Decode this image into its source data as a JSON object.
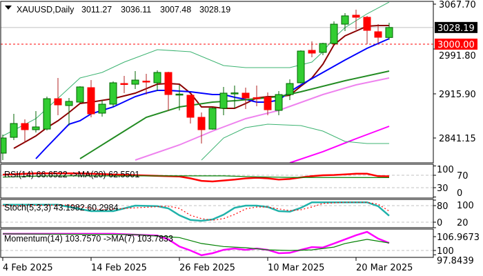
{
  "header": {
    "symbol": "XAUUSD,Daily",
    "open": "3011.27",
    "high": "3036.11",
    "low": "3007.48",
    "close": "3028.19"
  },
  "price_axis": {
    "labels": [
      "3067.70",
      "2991.80",
      "2915.90",
      "2841.15"
    ],
    "label_values": [
      3067.7,
      2991.8,
      2915.9,
      2841.15
    ],
    "current_price_tag": "3028.19",
    "current_price": 3028.19,
    "level_tag": "3000.00",
    "level": 3000.0
  },
  "dates": {
    "labels": [
      "4 Feb 2025",
      "14 Feb 2025",
      "26 Feb 2025",
      "10 Mar 2025",
      "20 Mar 2025"
    ],
    "indices": [
      0,
      8,
      16,
      24,
      32
    ]
  },
  "colors": {
    "up": "#32cd32",
    "down": "#ff0000",
    "ema_fast": "#8b0000",
    "ema_mid": "#0000ff",
    "bb_mid": "#228b22",
    "bb_band": "#3cb371",
    "ma_violet": "#ee82ee",
    "ma_magenta": "#ff00ff",
    "rsi": "#ff0000",
    "rsi_ma": "#008000",
    "stoch_main": "#20b2aa",
    "stoch_signal": "#ff0000",
    "mom": "#ff00ff",
    "mom_ma": "#008000"
  },
  "candles": [
    [
      2815.5,
      2847.0,
      2803.8,
      2841.2
    ],
    [
      2842.3,
      2882.0,
      2837.7,
      2865.7
    ],
    [
      2865.7,
      2872.7,
      2833.0,
      2855.2
    ],
    [
      2855.2,
      2886.7,
      2850.5,
      2859.9
    ],
    [
      2856.3,
      2911.2,
      2854.0,
      2907.7
    ],
    [
      2907.7,
      2942.8,
      2879.7,
      2897.2
    ],
    [
      2896.1,
      2908.9,
      2862.2,
      2903.1
    ],
    [
      2901.9,
      2928.7,
      2900.7,
      2927.6
    ],
    [
      2926.4,
      2939.2,
      2876.2,
      2882.0
    ],
    [
      2883.2,
      2905.4,
      2877.3,
      2898.4
    ],
    [
      2898.4,
      2936.9,
      2893.7,
      2934.6
    ],
    [
      2933.4,
      2946.3,
      2917.1,
      2932.2
    ],
    [
      2932.2,
      2954.4,
      2924.1,
      2939.2
    ],
    [
      2937.5,
      2949.8,
      2914.7,
      2936.9
    ],
    [
      2934.6,
      2955.6,
      2920.6,
      2952.1
    ],
    [
      2952.1,
      2953.3,
      2886.7,
      2914.7
    ],
    [
      2914.7,
      2931.1,
      2887.9,
      2915.5
    ],
    [
      2913.6,
      2914.0,
      2865.7,
      2876.2
    ],
    [
      2876.2,
      2884.4,
      2831.8,
      2855.2
    ],
    [
      2856.3,
      2892.5,
      2855.2,
      2891.4
    ],
    [
      2891.4,
      2927.6,
      2879.7,
      2917.1
    ],
    [
      2916.5,
      2929.9,
      2891.4,
      2917.5
    ],
    [
      2917.1,
      2926.4,
      2890.2,
      2908.9
    ],
    [
      2909.4,
      2929.9,
      2894.9,
      2908.9
    ],
    [
      2910.1,
      2918.2,
      2879.7,
      2889.0
    ],
    [
      2887.9,
      2920.6,
      2879.7,
      2914.7
    ],
    [
      2914.7,
      2940.4,
      2905.4,
      2933.4
    ],
    [
      2934.6,
      2989.5,
      2933.4,
      2988.3
    ],
    [
      2989.5,
      3004.6,
      2977.8,
      2984.8
    ],
    [
      2986.0,
      3002.3,
      2981.3,
      3001.1
    ],
    [
      3001.1,
      3038.5,
      3000.0,
      3033.8
    ],
    [
      3033.8,
      3052.5,
      3022.2,
      3047.9
    ],
    [
      3049.0,
      3058.4,
      3024.5,
      3045.5
    ],
    [
      3045.5,
      3047.9,
      3000.0,
      3023.3
    ],
    [
      3021.0,
      3033.8,
      3001.1,
      3011.6
    ],
    [
      3011.27,
      3036.11,
      3007.48,
      3028.19
    ]
  ],
  "overlays": [
    {
      "name": "ema-fast",
      "color": "ema_fast",
      "width": 2,
      "points": [
        [
          1,
          2823.7
        ],
        [
          3,
          2844.7
        ],
        [
          4,
          2858.7
        ],
        [
          5,
          2870.4
        ],
        [
          6,
          2884.4
        ],
        [
          7,
          2899.6
        ],
        [
          8,
          2901.9
        ],
        [
          10,
          2907.7
        ],
        [
          12,
          2917.1
        ],
        [
          14,
          2932.2
        ],
        [
          15,
          2933.4
        ],
        [
          16,
          2932.2
        ],
        [
          17,
          2917.1
        ],
        [
          18,
          2893.7
        ],
        [
          19,
          2893.7
        ],
        [
          20,
          2891.4
        ],
        [
          21,
          2891.4
        ],
        [
          22,
          2899.6
        ],
        [
          23,
          2908.9
        ],
        [
          24,
          2911.2
        ],
        [
          25,
          2911.2
        ],
        [
          26,
          2913.6
        ],
        [
          27,
          2928.7
        ],
        [
          28,
          2942.8
        ],
        [
          29,
          2966.1
        ],
        [
          30,
          2998.8
        ],
        [
          31,
          3014.0
        ],
        [
          32,
          3022.2
        ],
        [
          33,
          3030.3
        ],
        [
          34,
          3031.5
        ],
        [
          35,
          3031.5
        ]
      ]
    },
    {
      "name": "ema-mid",
      "color": "ema_mid",
      "width": 2,
      "points": [
        [
          3,
          2806.1
        ],
        [
          4,
          2826.0
        ],
        [
          6,
          2864.5
        ],
        [
          7,
          2870.4
        ],
        [
          8,
          2882.0
        ],
        [
          10,
          2893.7
        ],
        [
          12,
          2911.2
        ],
        [
          13,
          2917.1
        ],
        [
          14,
          2921.7
        ],
        [
          15,
          2921.7
        ],
        [
          17,
          2919.4
        ],
        [
          19,
          2914.7
        ],
        [
          20,
          2914.7
        ],
        [
          21,
          2910.1
        ],
        [
          22,
          2906.6
        ],
        [
          23,
          2901.9
        ],
        [
          24,
          2901.9
        ],
        [
          25,
          2905.4
        ],
        [
          26,
          2919.4
        ],
        [
          27,
          2931.1
        ],
        [
          29,
          2952.1
        ],
        [
          31,
          2973.1
        ],
        [
          33,
          2993.0
        ],
        [
          35,
          3009.3
        ]
      ]
    },
    {
      "name": "bb-middle",
      "color": "bb_mid",
      "width": 2,
      "points": [
        [
          7,
          2806.1
        ],
        [
          10,
          2841.2
        ],
        [
          13,
          2876.2
        ],
        [
          16,
          2893.7
        ],
        [
          19,
          2901.9
        ],
        [
          21,
          2904.2
        ],
        [
          25,
          2911.2
        ],
        [
          27,
          2919.4
        ],
        [
          31,
          2938.1
        ],
        [
          35,
          2954.4
        ]
      ]
    },
    {
      "name": "ma-violet",
      "color": "ma_violet",
      "width": 2,
      "points": [
        [
          12,
          2803.8
        ],
        [
          16,
          2829.5
        ],
        [
          19,
          2852.8
        ],
        [
          22,
          2873.9
        ],
        [
          25,
          2887.9
        ],
        [
          29,
          2914.7
        ],
        [
          32,
          2931.1
        ],
        [
          35,
          2942.8
        ]
      ]
    },
    {
      "name": "ma-magenta",
      "color": "ma_magenta",
      "width": 2,
      "points": [
        [
          26,
          2799.1
        ],
        [
          29,
          2818.0
        ],
        [
          32,
          2840.0
        ],
        [
          35,
          2861.0
        ]
      ]
    },
    {
      "name": "bb-upper",
      "color": "bb_band",
      "width": 1,
      "points": [
        [
          0,
          2844.7
        ],
        [
          3,
          2873.9
        ],
        [
          7,
          2942.8
        ],
        [
          9,
          2952.1
        ],
        [
          11,
          2969.6
        ],
        [
          14,
          2990.6
        ],
        [
          17,
          2987.1
        ],
        [
          20,
          2963.8
        ],
        [
          22,
          2960.3
        ],
        [
          26,
          2960.3
        ],
        [
          28,
          2969.6
        ],
        [
          29,
          2987.1
        ],
        [
          30,
          3010.5
        ],
        [
          31,
          3028.0
        ],
        [
          33,
          3051.3
        ],
        [
          35,
          3071.2
        ]
      ]
    },
    {
      "name": "bb-lower",
      "color": "bb_band",
      "width": 1,
      "points": [
        [
          18,
          2803.8
        ],
        [
          20,
          2841.2
        ],
        [
          22,
          2858.7
        ],
        [
          24,
          2864.5
        ],
        [
          27,
          2862.2
        ],
        [
          29,
          2852.8
        ],
        [
          31,
          2835.3
        ],
        [
          33,
          2831.8
        ],
        [
          35,
          2831.8
        ]
      ]
    }
  ],
  "rsi": {
    "label": "RSI(14) 66.6522  ->MA(20) 62.5501",
    "axis_labels": [
      "100",
      "70",
      "30",
      "0"
    ],
    "axis_values": [
      100,
      70,
      30,
      0
    ],
    "levels": [
      70,
      30
    ],
    "series": [
      {
        "color": "rsi",
        "points": [
          [
            0,
            72
          ],
          [
            3,
            76
          ],
          [
            7,
            76
          ],
          [
            14,
            68
          ],
          [
            16,
            66
          ],
          [
            17,
            60
          ],
          [
            18,
            52
          ],
          [
            19,
            50
          ],
          [
            20,
            53
          ],
          [
            21,
            56
          ],
          [
            22,
            60
          ],
          [
            23,
            62
          ],
          [
            24,
            60
          ],
          [
            25,
            56
          ],
          [
            26,
            58
          ],
          [
            27,
            63
          ],
          [
            28,
            67
          ],
          [
            29,
            70
          ],
          [
            30,
            71
          ],
          [
            31,
            73
          ],
          [
            32,
            75
          ],
          [
            33,
            75
          ],
          [
            34,
            67
          ],
          [
            35,
            66.65
          ]
        ]
      },
      {
        "color": "rsi_ma",
        "points": [
          [
            0,
            64
          ],
          [
            4,
            68
          ],
          [
            17,
            68
          ],
          [
            20,
            68
          ],
          [
            23,
            65
          ],
          [
            26,
            63
          ],
          [
            35,
            62.55
          ]
        ]
      }
    ]
  },
  "stoch": {
    "label": "Stoch(5,3,3) 43.1982 60.2984",
    "axis_labels": [
      "80",
      "100",
      "0",
      "20"
    ],
    "axis_values": [
      80,
      100,
      0,
      20
    ],
    "levels": [
      80,
      20
    ],
    "series": [
      {
        "color": "stoch_main",
        "dash": false,
        "points": [
          [
            0,
            83
          ],
          [
            5,
            83
          ],
          [
            8,
            60
          ],
          [
            10,
            60
          ],
          [
            12,
            80
          ],
          [
            14,
            78
          ],
          [
            15,
            70
          ],
          [
            16,
            45
          ],
          [
            17,
            28
          ],
          [
            18,
            25
          ],
          [
            19,
            30
          ],
          [
            20,
            47
          ],
          [
            21,
            72
          ],
          [
            22,
            80
          ],
          [
            23,
            80
          ],
          [
            24,
            75
          ],
          [
            25,
            60
          ],
          [
            26,
            58
          ],
          [
            27,
            72
          ],
          [
            28,
            92
          ],
          [
            30,
            92
          ],
          [
            32,
            92
          ],
          [
            33,
            92
          ],
          [
            34,
            78
          ],
          [
            35,
            43.2
          ]
        ]
      },
      {
        "color": "stoch_signal",
        "dash": true,
        "points": [
          [
            0,
            80
          ],
          [
            6,
            82
          ],
          [
            9,
            65
          ],
          [
            12,
            72
          ],
          [
            15,
            78
          ],
          [
            16,
            70
          ],
          [
            17,
            45
          ],
          [
            18,
            33
          ],
          [
            19,
            27
          ],
          [
            20,
            33
          ],
          [
            21,
            48
          ],
          [
            22,
            68
          ],
          [
            23,
            75
          ],
          [
            24,
            75
          ],
          [
            25,
            68
          ],
          [
            26,
            62
          ],
          [
            27,
            65
          ],
          [
            28,
            75
          ],
          [
            29,
            88
          ],
          [
            31,
            92
          ],
          [
            33,
            92
          ],
          [
            34,
            85
          ],
          [
            35,
            60.3
          ]
        ]
      }
    ]
  },
  "momentum": {
    "label": "Momentum(14) 103.7570  ->MA(7) 103.7833",
    "axis_labels": [
      "106.9673",
      "100",
      "97.8439"
    ],
    "axis_values": [
      106.9673,
      100,
      97.8439
    ],
    "levels": [
      100
    ],
    "series": [
      {
        "color": "mom",
        "points": [
          [
            0,
            108.4
          ],
          [
            10,
            108.4
          ],
          [
            14,
            107.5
          ],
          [
            15,
            105.6
          ],
          [
            16,
            102
          ],
          [
            17,
            100
          ],
          [
            18,
            97.6
          ],
          [
            19,
            98.6
          ],
          [
            20,
            100.3
          ],
          [
            21,
            101
          ],
          [
            22,
            100.3
          ],
          [
            23,
            101
          ],
          [
            24,
            100.3
          ],
          [
            25,
            98.6
          ],
          [
            26,
            98.8
          ],
          [
            27,
            100.3
          ],
          [
            28,
            101.7
          ],
          [
            29,
            101.5
          ],
          [
            30,
            103.5
          ],
          [
            31,
            105.6
          ],
          [
            32,
            107.7
          ],
          [
            33,
            109.4
          ],
          [
            34,
            106
          ],
          [
            35,
            103.76
          ]
        ]
      },
      {
        "color": "mom_ma",
        "points": [
          [
            0,
            108.4
          ],
          [
            12,
            108
          ],
          [
            16,
            106.5
          ],
          [
            18,
            103.5
          ],
          [
            20,
            102
          ],
          [
            22,
            101.4
          ],
          [
            24,
            100.3
          ],
          [
            26,
            100
          ],
          [
            28,
            100.3
          ],
          [
            30,
            101.7
          ],
          [
            31,
            103.5
          ],
          [
            33,
            105.6
          ],
          [
            35,
            103.78
          ]
        ]
      }
    ]
  }
}
